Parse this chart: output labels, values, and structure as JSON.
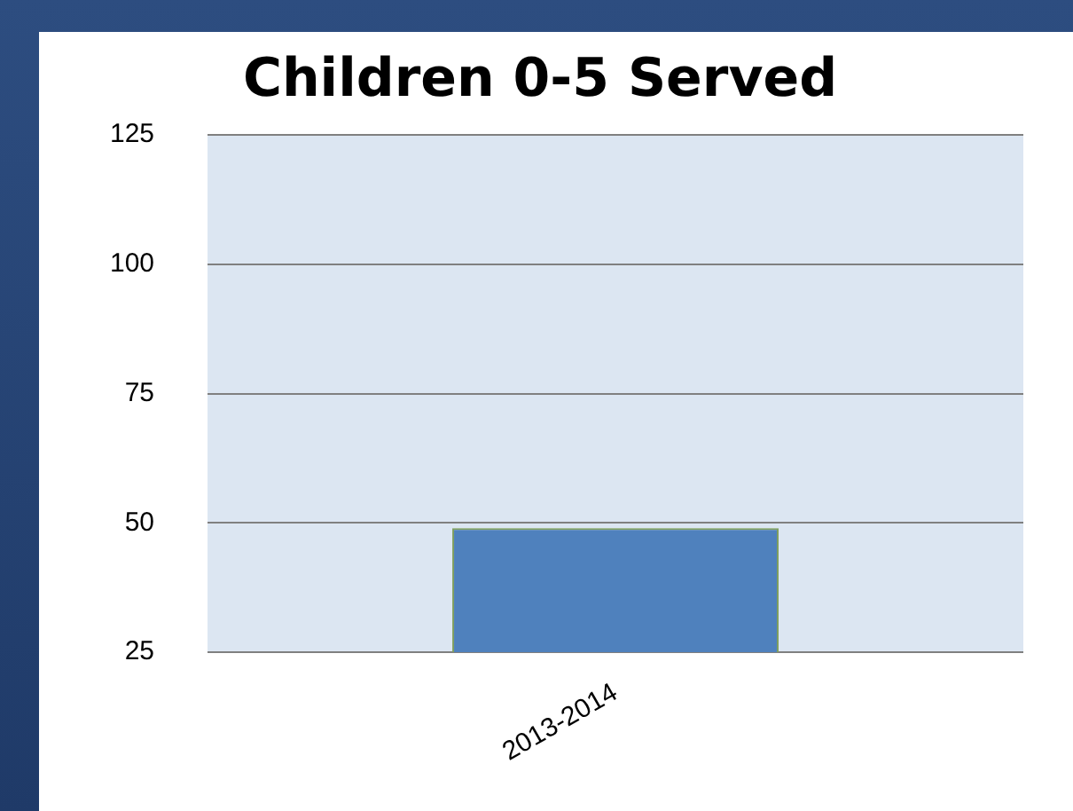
{
  "chart_data": {
    "type": "bar",
    "title": "Children 0-5 Served",
    "categories": [
      "2013-2014"
    ],
    "values": [
      49
    ],
    "color": "#4f81bd",
    "ylim": [
      25,
      125
    ],
    "yticks": [
      25,
      50,
      75,
      100,
      125
    ],
    "grid": "y",
    "legend": false
  }
}
